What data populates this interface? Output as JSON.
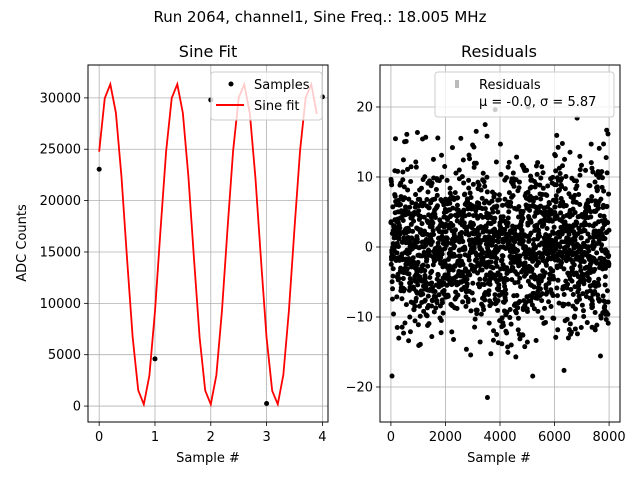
{
  "suptitle": "Run 2064, channel1, Sine Freq.: 18.005 MHz",
  "chart_data": [
    {
      "type": "line",
      "title": "Sine Fit",
      "xlabel": "Sample #",
      "ylabel": "ADC Counts",
      "xlim": [
        -0.2,
        4.1
      ],
      "ylim": [
        -1550,
        33200
      ],
      "xticks": [
        0,
        1,
        2,
        3,
        4
      ],
      "yticks": [
        0,
        5000,
        10000,
        15000,
        20000,
        25000,
        30000
      ],
      "grid": true,
      "legend_position": "top-right",
      "series": [
        {
          "name": "Samples",
          "style": "points",
          "color": "#000000",
          "x": [
            0,
            1,
            2,
            3,
            4
          ],
          "y": [
            23050,
            4600,
            29800,
            250,
            30100
          ]
        },
        {
          "name": "Sine fit",
          "style": "line",
          "color": "#ff0000",
          "model": {
            "offset": 15750,
            "amplitude": 15650,
            "frequency_cycles_per_sample": 0.8338,
            "phase_rad": 0.6138,
            "x_range": [
              0,
              3.9
            ],
            "x_step": 0.1
          }
        }
      ]
    },
    {
      "type": "scatter",
      "title": "Residuals",
      "xlabel": "Sample #",
      "ylabel": "",
      "xlim": [
        -400,
        8400
      ],
      "ylim": [
        -25,
        26
      ],
      "xticks": [
        0,
        2000,
        4000,
        6000,
        8000
      ],
      "yticks": [
        -20,
        -10,
        0,
        10,
        20
      ],
      "grid": true,
      "legend_position": "top-right",
      "series": [
        {
          "name": "Residuals",
          "color": "#000000",
          "distribution": {
            "count": 8000,
            "mean": 0.0,
            "sigma": 5.87
          }
        }
      ],
      "legend_lines": [
        "Residuals",
        "μ = -0.0, σ = 5.87"
      ]
    }
  ]
}
